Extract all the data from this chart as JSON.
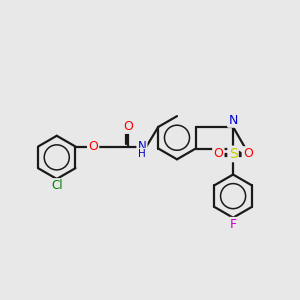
{
  "bg_color": "#e8e8e8",
  "bond_color": "#1a1a1a",
  "atom_colors": {
    "O": "#ff0000",
    "N": "#0000cc",
    "S": "#cccc00",
    "Cl": "#008000",
    "F": "#cc00cc"
  },
  "figsize": [
    3.0,
    3.0
  ],
  "dpi": 100,
  "xlim": [
    0,
    12
  ],
  "ylim": [
    0,
    12
  ]
}
